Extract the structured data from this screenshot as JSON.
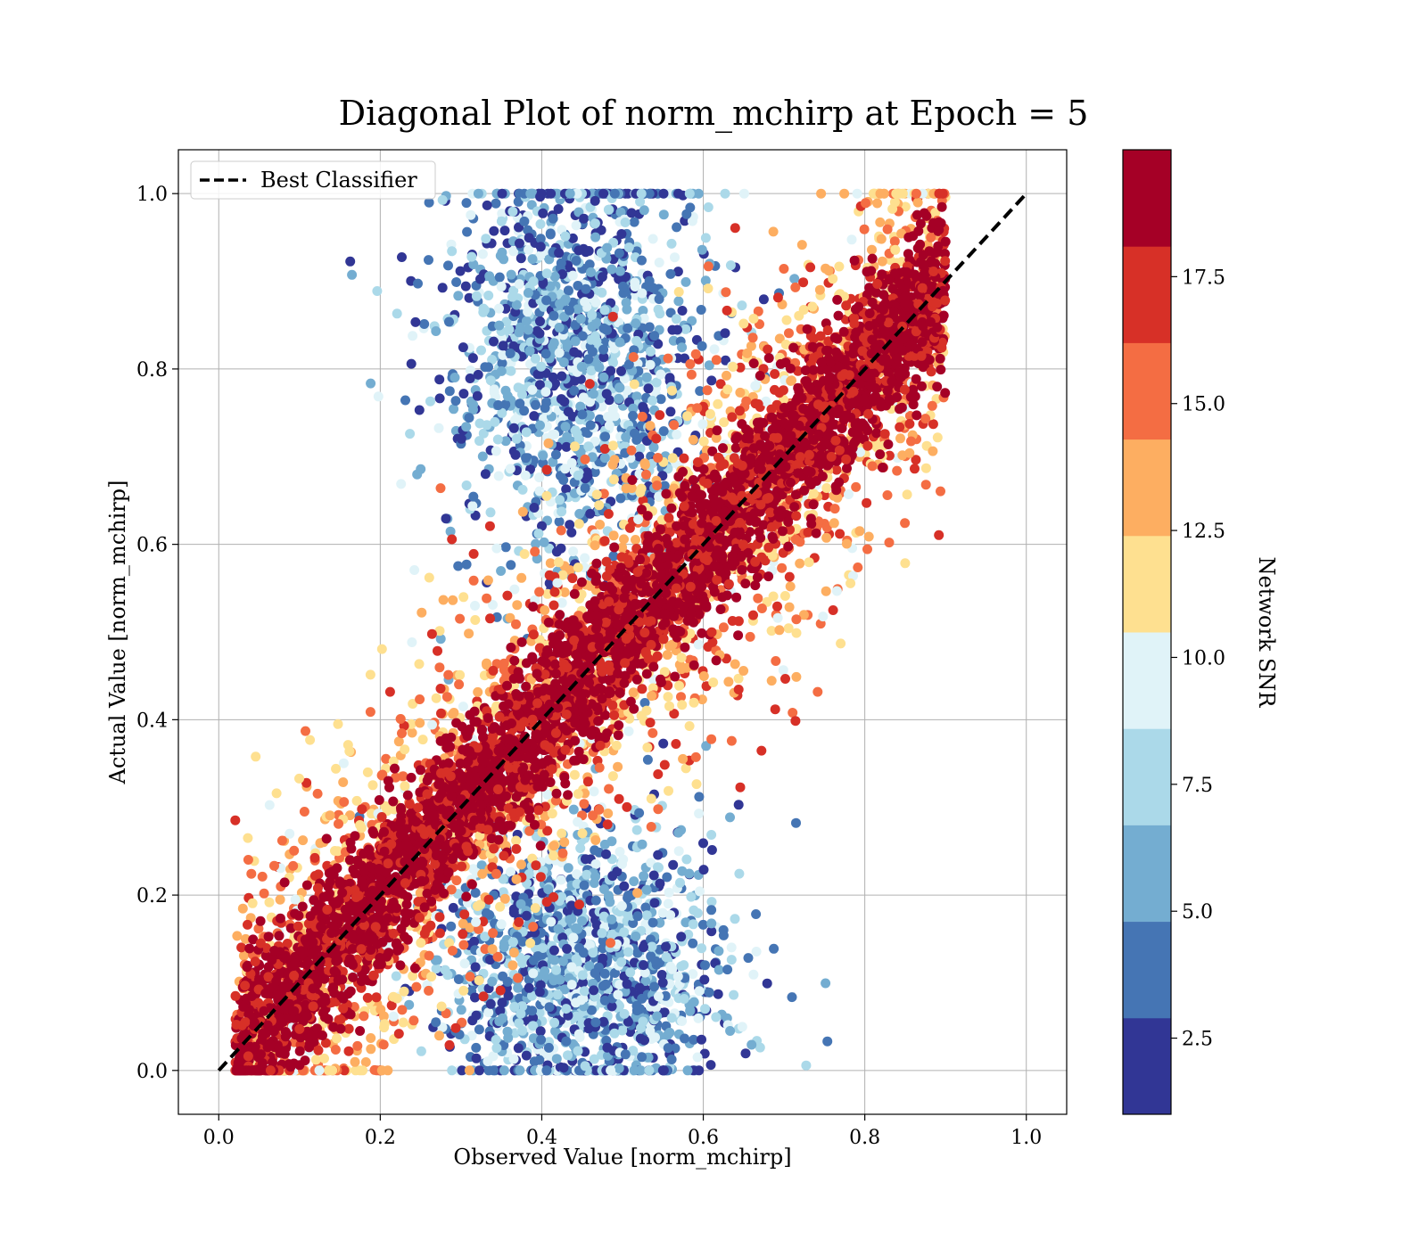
{
  "chart_data": {
    "type": "scatter",
    "title": "Diagonal Plot of norm_mchirp at Epoch = 5",
    "xlabel": "Observed Value [norm_mchirp]",
    "ylabel": "Actual Value [norm_mchirp]",
    "xlim": [
      -0.05,
      1.05
    ],
    "ylim": [
      -0.05,
      1.05
    ],
    "xticks": [
      0.0,
      0.2,
      0.4,
      0.6,
      0.8,
      1.0
    ],
    "xtick_labels": [
      "0.0",
      "0.2",
      "0.4",
      "0.6",
      "0.8",
      "1.0"
    ],
    "yticks": [
      0.0,
      0.2,
      0.4,
      0.6,
      0.8,
      1.0
    ],
    "ytick_labels": [
      "0.0",
      "0.2",
      "0.4",
      "0.6",
      "0.8",
      "1.0"
    ],
    "grid": true,
    "legend": {
      "position": "top-left",
      "entries": [
        {
          "label": "Best Classifier",
          "style": "black dashed line"
        }
      ]
    },
    "reference_line": {
      "name": "Best Classifier",
      "x": [
        0.0,
        1.0
      ],
      "y": [
        0.0,
        1.0
      ],
      "color": "#000000",
      "dash": true
    },
    "colorbar": {
      "label": "Network SNR",
      "range": [
        1.0,
        20.0
      ],
      "ticks": [
        2.5,
        5.0,
        7.5,
        10.0,
        12.5,
        15.0,
        17.5
      ],
      "tick_labels": [
        "2.5",
        "5.0",
        "7.5",
        "10.0",
        "12.5",
        "15.0",
        "17.5"
      ],
      "colors": [
        "#313695",
        "#4575b4",
        "#74add1",
        "#abd9e9",
        "#e0f3f8",
        "#fee090",
        "#fdae61",
        "#f46d43",
        "#d73027",
        "#a50026"
      ]
    },
    "scatter_description": {
      "color_by": "Network SNR",
      "high_snr_band": {
        "snr_min": 17.5,
        "along": "diagonal y = x",
        "x_range": [
          0.02,
          0.9
        ],
        "half_width": 0.06
      },
      "mid_snr_band": {
        "snr_range": [
          10.0,
          17.5
        ],
        "half_width": 0.14
      },
      "low_snr_clouds": [
        {
          "snr_range": [
            1.0,
            10.0
          ],
          "x_center": 0.44,
          "y_center": 0.82,
          "x_spread": 0.08,
          "y_spread": 0.12
        },
        {
          "snr_range": [
            1.0,
            10.0
          ],
          "x_center": 0.45,
          "y_center": 0.12,
          "x_spread": 0.09,
          "y_spread": 0.08
        }
      ],
      "note": "points drawn from a seeded pseudo-random generator approximating the plotted distribution"
    }
  }
}
